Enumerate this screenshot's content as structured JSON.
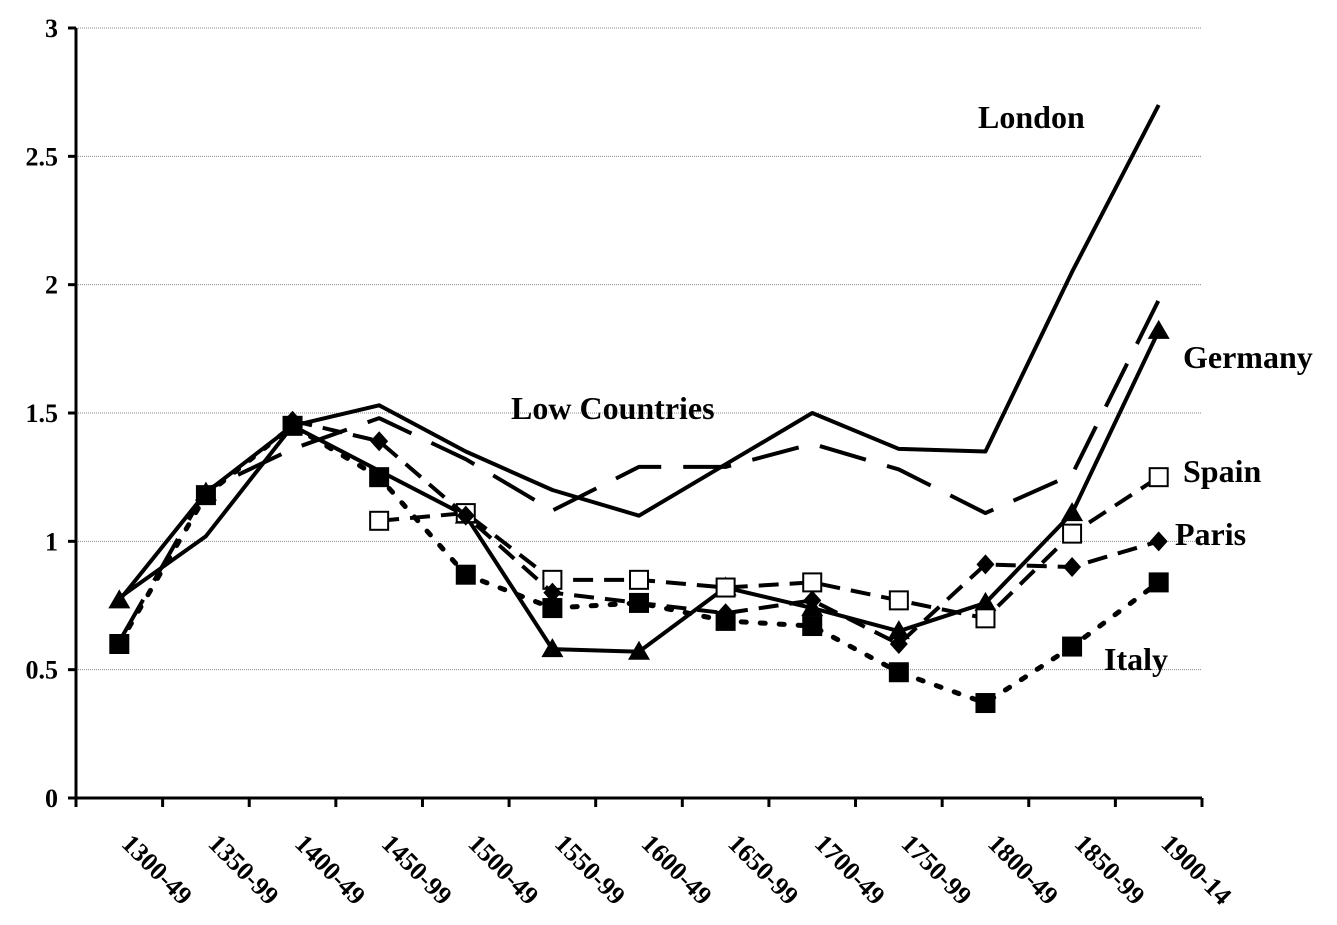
{
  "chart_data": {
    "type": "line",
    "title": "",
    "xlabel": "",
    "ylabel": "",
    "categories": [
      "1300-49",
      "1350-99",
      "1400-49",
      "1450-99",
      "1500-49",
      "1550-99",
      "1600-49",
      "1650-99",
      "1700-49",
      "1750-99",
      "1800-49",
      "1850-99",
      "1900-14"
    ],
    "ylim": [
      0,
      3
    ],
    "yticks": [
      "0",
      "0.5",
      "1",
      "1.5",
      "2",
      "2.5",
      "3"
    ],
    "grid": true,
    "legend": "inline labels",
    "series": [
      {
        "name": "London",
        "style": "solid",
        "marker": "none",
        "values": [
          0.78,
          1.02,
          1.45,
          1.53,
          1.35,
          1.2,
          1.1,
          1.3,
          1.5,
          1.36,
          1.35,
          2.05,
          2.7
        ]
      },
      {
        "name": "Low Countries",
        "style": "longdash",
        "marker": "none",
        "values": [
          0.61,
          1.2,
          1.36,
          1.48,
          1.32,
          1.12,
          1.29,
          1.29,
          1.38,
          1.28,
          1.11,
          1.26,
          1.94
        ]
      },
      {
        "name": "Germany",
        "style": "solid",
        "marker": "triangle",
        "values": [
          0.77,
          1.19,
          1.45,
          null,
          1.1,
          0.58,
          0.57,
          0.82,
          0.74,
          0.65,
          0.76,
          1.11,
          1.82
        ]
      },
      {
        "name": "Spain",
        "style": "dash",
        "marker": "open-square",
        "values": [
          null,
          null,
          null,
          1.08,
          1.11,
          0.85,
          0.85,
          0.82,
          0.84,
          0.77,
          0.7,
          1.03,
          1.25
        ]
      },
      {
        "name": "Paris",
        "style": "dash",
        "marker": "diamond",
        "values": [
          null,
          null,
          1.47,
          1.39,
          1.1,
          0.8,
          0.76,
          0.72,
          0.77,
          0.6,
          0.91,
          0.9,
          1.0
        ]
      },
      {
        "name": "Italy",
        "style": "dot",
        "marker": "filled-square",
        "values": [
          0.6,
          1.18,
          1.45,
          1.25,
          0.87,
          0.74,
          0.76,
          0.69,
          0.67,
          0.49,
          0.37,
          0.59,
          0.84
        ]
      }
    ]
  }
}
